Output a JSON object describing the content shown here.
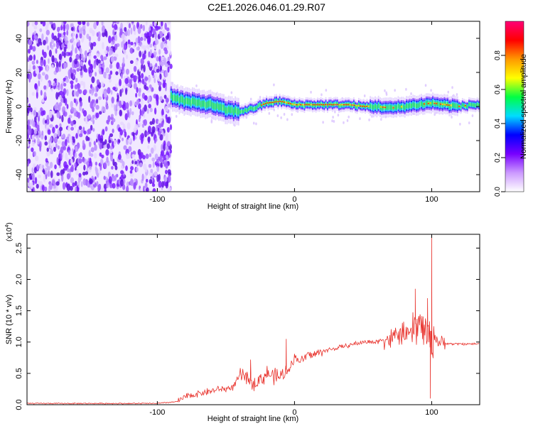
{
  "chart_data": [
    {
      "type": "heatmap",
      "title": "C2E1.2026.046.01.29.R07",
      "xlabel": "Height of straight line (km)",
      "ylabel": "Frequency (Hz)",
      "xlim": [
        -195,
        135
      ],
      "ylim": [
        -50,
        50
      ],
      "xticks": [
        -100,
        0,
        100
      ],
      "xtick_labels": [
        "-100",
        "0",
        "100"
      ],
      "yticks": [
        -40,
        -20,
        0,
        20,
        40
      ],
      "ytick_labels": [
        "-40",
        "-20",
        "0",
        "20",
        "40"
      ],
      "noise_region_x": [
        -195,
        -90
      ],
      "ridge": {
        "x": [
          -90,
          -80,
          -70,
          -60,
          -50,
          -40,
          -30,
          -20,
          -10,
          0,
          10,
          20,
          30,
          40,
          50,
          60,
          70,
          80,
          90,
          100,
          110,
          120,
          130
        ],
        "freq": [
          6,
          3,
          2,
          1,
          -2,
          -3,
          -1,
          2,
          3,
          1,
          1,
          1,
          1,
          1,
          0,
          0,
          -1,
          0,
          1,
          2,
          1,
          0,
          1
        ]
      },
      "colorbar": {
        "label": "Normalized spectral amplitude",
        "range": [
          0.0,
          1.0
        ],
        "ticks": [
          0.0,
          0.2,
          0.4,
          0.6,
          0.8
        ],
        "tick_labels": [
          "0.0",
          "0.2",
          "0.4",
          "0.6",
          "0.8"
        ],
        "colors": [
          "#ffffff",
          "#cc99ff",
          "#7700ff",
          "#0000ff",
          "#00ddff",
          "#00ff44",
          "#ffff00",
          "#ff9900",
          "#ff0000",
          "#ff0077"
        ]
      }
    },
    {
      "type": "line",
      "xlabel": "Height of straight line (km)",
      "ylabel": "SNR (10 * v/v)",
      "multiplier": "(x10",
      "multiplier_exp": "4",
      "xlim": [
        -195,
        135
      ],
      "ylim": [
        0,
        2.72
      ],
      "xticks": [
        -100,
        0,
        100
      ],
      "xtick_labels": [
        "-100",
        "0",
        "100"
      ],
      "yticks": [
        0.0,
        0.5,
        1.0,
        1.5,
        2.0,
        2.5
      ],
      "ytick_labels": [
        "0.0",
        "0.5",
        "1.0",
        "1.5",
        "2.0",
        "2.5"
      ],
      "line_color": "#e8302a",
      "series": [
        {
          "name": "SNR",
          "x": [
            -195,
            -160,
            -120,
            -100,
            -85,
            -80,
            -75,
            -70,
            -65,
            -60,
            -55,
            -50,
            -45,
            -40,
            -35,
            -30,
            -25,
            -20,
            -15,
            -10,
            -5,
            0,
            5,
            10,
            15,
            20,
            30,
            40,
            50,
            60,
            65,
            70,
            75,
            80,
            85,
            88,
            92,
            95,
            98,
            100,
            102,
            105,
            110,
            115,
            120,
            125,
            130,
            135
          ],
          "y": [
            0.02,
            0.02,
            0.02,
            0.02,
            0.05,
            0.12,
            0.15,
            0.18,
            0.2,
            0.22,
            0.25,
            0.25,
            0.28,
            0.45,
            0.45,
            0.35,
            0.4,
            0.5,
            0.45,
            0.45,
            0.55,
            0.75,
            0.7,
            0.8,
            0.8,
            0.85,
            0.9,
            0.95,
            1.0,
            1.0,
            1.05,
            1.05,
            1.1,
            1.15,
            1.1,
            1.25,
            1.3,
            1.2,
            1.1,
            1.0,
            1.1,
            1.0,
            0.98,
            0.97,
            0.97,
            0.97,
            0.97,
            0.97
          ]
        }
      ],
      "spikes": [
        {
          "x": -32,
          "y": 0.72
        },
        {
          "x": -6,
          "y": 1.05
        },
        {
          "x": 88,
          "y": 1.85
        },
        {
          "x": 97,
          "y": 1.7
        },
        {
          "x": 100,
          "y": 2.72
        },
        {
          "x": 99,
          "y": 0.1
        }
      ]
    }
  ]
}
